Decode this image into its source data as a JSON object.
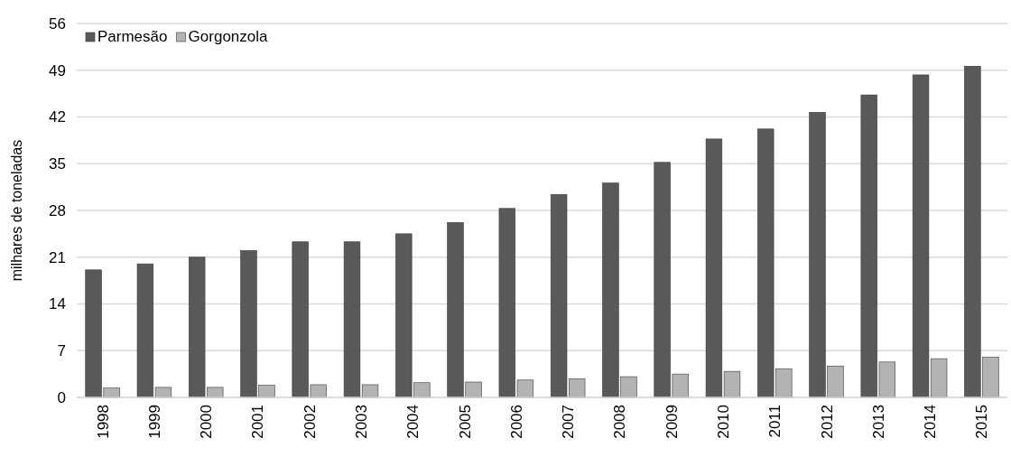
{
  "chart_data": {
    "type": "bar",
    "ylabel": "milhares de toneladas",
    "categories": [
      "1998",
      "1999",
      "2000",
      "2001",
      "2002",
      "2003",
      "2004",
      "2005",
      "2006",
      "2007",
      "2008",
      "2009",
      "2010",
      "2011",
      "2012",
      "2013",
      "2014",
      "2015"
    ],
    "series": [
      {
        "name": "Parmesão",
        "color": "#595959",
        "values": [
          19.1,
          20.0,
          21.0,
          22.0,
          23.3,
          23.3,
          24.5,
          26.2,
          28.3,
          30.4,
          32.1,
          35.2,
          38.7,
          40.2,
          42.7,
          45.3,
          48.3,
          49.6
        ]
      },
      {
        "name": "Gorgonzola",
        "color": "#b3b3b3",
        "values": [
          1.4,
          1.5,
          1.5,
          1.8,
          1.9,
          1.9,
          2.2,
          2.3,
          2.6,
          2.8,
          3.1,
          3.5,
          3.9,
          4.3,
          4.7,
          5.3,
          5.8,
          6.0
        ]
      }
    ],
    "ylim": [
      0,
      56
    ],
    "yticks": [
      0,
      7,
      14,
      21,
      28,
      35,
      42,
      49,
      56
    ],
    "grid": "y",
    "legend": "top left"
  }
}
